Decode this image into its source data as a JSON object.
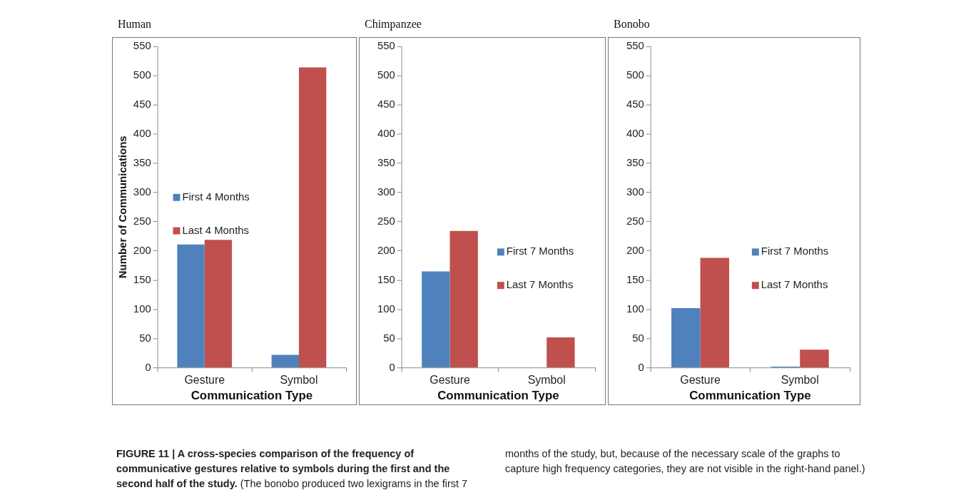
{
  "chart_data": [
    {
      "type": "bar",
      "title": "Human",
      "xlabel": "Communication Type",
      "ylabel": "Number of Communications",
      "categories": [
        "Gesture",
        "Symbol"
      ],
      "series": [
        {
          "name": "First 4 Months",
          "color": "#4f81bd",
          "values": [
            211,
            22
          ]
        },
        {
          "name": "Last 4 Months",
          "color": "#c0504d",
          "values": [
            219,
            514
          ]
        }
      ],
      "ylim": [
        0,
        550
      ],
      "yticks": [
        0,
        50,
        100,
        150,
        200,
        250,
        300,
        350,
        400,
        450,
        500,
        550
      ],
      "legend": "left",
      "grid": false
    },
    {
      "type": "bar",
      "title": "Chimpanzee",
      "xlabel": "Communication Type",
      "categories": [
        "Gesture",
        "Symbol"
      ],
      "series": [
        {
          "name": "First 7 Months",
          "color": "#4f81bd",
          "values": [
            165,
            0
          ]
        },
        {
          "name": "Last 7 Months",
          "color": "#c0504d",
          "values": [
            234,
            52
          ]
        }
      ],
      "ylim": [
        0,
        550
      ],
      "yticks": [
        0,
        50,
        100,
        150,
        200,
        250,
        300,
        350,
        400,
        450,
        500,
        550
      ],
      "legend": "right",
      "grid": false
    },
    {
      "type": "bar",
      "title": "Bonobo",
      "xlabel": "Communication Type",
      "categories": [
        "Gesture",
        "Symbol"
      ],
      "series": [
        {
          "name": "First 7 Months",
          "color": "#4f81bd",
          "values": [
            102,
            2
          ]
        },
        {
          "name": "Last 7 Months",
          "color": "#c0504d",
          "values": [
            188,
            31
          ]
        }
      ],
      "ylim": [
        0,
        550
      ],
      "yticks": [
        0,
        50,
        100,
        150,
        200,
        250,
        300,
        350,
        400,
        450,
        500,
        550
      ],
      "legend": "right",
      "grid": false,
      "annotations": [
        "FIGURE 11 | A cross-species comparison of the frequency of communicative gestures relative to symbols during the first and the second half of the study.",
        "(The bonobo produced two lexigrams in the first 7 months of the study, but, because of the necessary scale of the graphs to capture high frequency categories, they are not visible in the right-hand panel.)"
      ]
    }
  ]
}
